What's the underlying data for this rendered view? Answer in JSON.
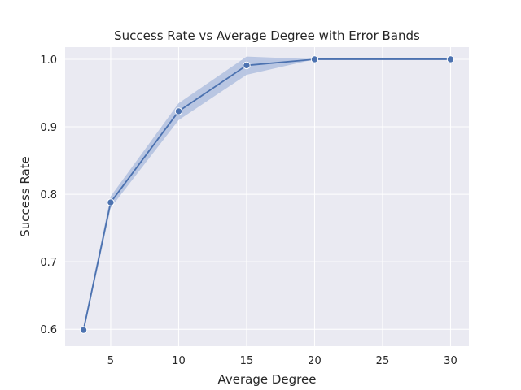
{
  "chart_data": {
    "type": "line",
    "title": "Success Rate vs Average Degree with Error Bands",
    "xlabel": "Average Degree",
    "ylabel": "Success Rate",
    "xlim": [
      1.65,
      31.35
    ],
    "ylim": [
      0.575,
      1.018
    ],
    "x_ticks": [
      5,
      10,
      15,
      20,
      25,
      30
    ],
    "y_ticks": [
      0.6,
      0.7,
      0.8,
      0.9,
      1.0
    ],
    "x_tick_labels": [
      "5",
      "10",
      "15",
      "20",
      "25",
      "30"
    ],
    "y_tick_labels": [
      "0.6",
      "0.7",
      "0.8",
      "0.9",
      "1.0"
    ],
    "grid": true,
    "series": [
      {
        "x": [
          3,
          5,
          10,
          15,
          20,
          30
        ],
        "values": [
          0.599,
          0.788,
          0.923,
          0.991,
          1.0,
          1.0
        ],
        "lower": [
          0.594,
          0.78,
          0.91,
          0.977,
          1.0,
          1.0
        ],
        "upper": [
          0.604,
          0.797,
          0.935,
          1.004,
          1.0,
          1.0
        ],
        "color": "#4c72b0",
        "band_color": "#a8b9dc"
      }
    ],
    "background_color": "#eaeaf2",
    "grid_color": "#ffffff"
  }
}
